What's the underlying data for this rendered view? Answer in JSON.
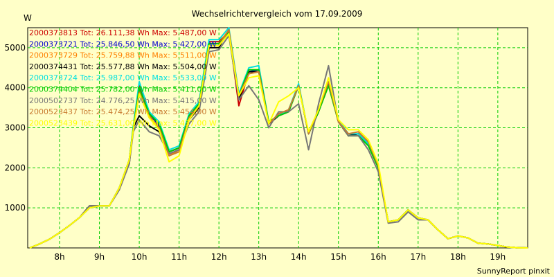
{
  "chart_data": {
    "type": "line",
    "title": "Wechselrichtervergleich vom 17.09.2009",
    "ylabel": "W",
    "footer": "SunnyReport pinxit",
    "xlim": [
      7.2,
      19.75
    ],
    "ylim": [
      0,
      5500
    ],
    "yticks": [
      1000,
      2000,
      3000,
      4000,
      5000
    ],
    "ytick_labels": [
      "1000",
      "2000",
      "3000",
      "4000",
      "5000"
    ],
    "xticks": [
      8,
      9,
      10,
      11,
      12,
      13,
      14,
      15,
      16,
      17,
      18,
      19
    ],
    "xtick_labels": [
      "8h",
      "9h",
      "10h",
      "11h",
      "12h",
      "13h",
      "14h",
      "15h",
      "16h",
      "17h",
      "18h",
      "19h"
    ],
    "grid": true,
    "legend_position": "top-left, inside plot",
    "x": [
      7.25,
      7.5,
      7.75,
      8.0,
      8.25,
      8.5,
      8.75,
      9.0,
      9.25,
      9.5,
      9.75,
      9.85,
      10.0,
      10.25,
      10.5,
      10.75,
      11.0,
      11.25,
      11.5,
      11.75,
      12.0,
      12.25,
      12.5,
      12.75,
      13.0,
      13.25,
      13.5,
      13.75,
      14.0,
      14.25,
      14.5,
      14.75,
      15.0,
      15.25,
      15.5,
      15.75,
      16.0,
      16.25,
      16.5,
      16.75,
      17.0,
      17.25,
      17.5,
      17.75,
      18.0,
      18.25,
      18.5,
      18.75,
      19.0,
      19.25,
      19.5,
      19.75
    ],
    "series": [
      {
        "name": "2000373813",
        "legend": "2000373813 Tot: 26.111,38 Wh Max: 5.487,00 W",
        "color": "#cc0000",
        "values": [
          0,
          100,
          220,
          380,
          560,
          760,
          1000,
          1050,
          1050,
          1500,
          2200,
          3000,
          4050,
          3400,
          3100,
          2400,
          2500,
          3300,
          3600,
          5150,
          5150,
          5400,
          3550,
          4400,
          4450,
          3100,
          3350,
          3450,
          4050,
          2850,
          3400,
          4100,
          3150,
          2800,
          2850,
          2600,
          2000,
          650,
          700,
          950,
          750,
          700,
          450,
          230,
          300,
          250,
          120,
          100,
          60,
          20,
          5,
          0
        ]
      },
      {
        "name": "2000373721",
        "legend": "2000373721 Tot: 25.846,50 Wh Max: 5.427,00 W",
        "color": "#0000cc",
        "values": [
          0,
          100,
          220,
          380,
          560,
          760,
          1000,
          1050,
          1050,
          1500,
          2200,
          3000,
          4000,
          3350,
          3050,
          2350,
          2450,
          3300,
          3600,
          5100,
          5100,
          5400,
          3800,
          4400,
          4450,
          3100,
          3300,
          3400,
          4050,
          2850,
          3400,
          4100,
          3200,
          2800,
          2850,
          2600,
          2000,
          650,
          700,
          950,
          750,
          700,
          450,
          230,
          300,
          250,
          120,
          100,
          60,
          20,
          5,
          0
        ]
      },
      {
        "name": "2000373729",
        "legend": "2000373729 Tot: 25.759,88 Wh Max: 5.511,00 W",
        "color": "#ff8000",
        "values": [
          0,
          100,
          220,
          380,
          560,
          760,
          1000,
          1050,
          1050,
          1500,
          2200,
          3000,
          4000,
          3300,
          3000,
          2300,
          2450,
          3250,
          3600,
          5100,
          5100,
          5450,
          3800,
          4350,
          4400,
          3100,
          3350,
          3450,
          4050,
          2850,
          3450,
          4150,
          3150,
          2800,
          2850,
          2600,
          2000,
          650,
          700,
          950,
          750,
          700,
          450,
          230,
          300,
          250,
          120,
          100,
          60,
          20,
          5,
          0
        ]
      },
      {
        "name": "2000374431",
        "legend": "2000374431 Tot: 25.577,88 Wh Max: 5.504,00 W",
        "color": "#000000",
        "values": [
          0,
          100,
          220,
          380,
          560,
          760,
          1050,
          1050,
          1050,
          1500,
          2100,
          3000,
          3300,
          3050,
          2900,
          2400,
          2500,
          3200,
          3500,
          5000,
          5000,
          5450,
          3700,
          4400,
          4400,
          3100,
          3300,
          3450,
          4050,
          2850,
          3400,
          4100,
          3150,
          2800,
          2850,
          2600,
          2000,
          650,
          700,
          950,
          750,
          700,
          450,
          230,
          300,
          250,
          120,
          100,
          60,
          20,
          5,
          0
        ]
      },
      {
        "name": "2000373724",
        "legend": "2000373724 Tot: 25.987,00 Wh Max: 5.533,00 W",
        "color": "#00e0e0",
        "values": [
          0,
          100,
          220,
          380,
          560,
          760,
          1000,
          1050,
          1050,
          1500,
          2200,
          3050,
          4150,
          3400,
          3150,
          2450,
          2550,
          3350,
          3650,
          5200,
          5200,
          5500,
          3850,
          4500,
          4550,
          3150,
          3300,
          3450,
          4100,
          2850,
          3450,
          4150,
          3200,
          2850,
          2850,
          2600,
          2000,
          650,
          700,
          950,
          750,
          700,
          450,
          230,
          300,
          250,
          120,
          100,
          60,
          20,
          5,
          0
        ]
      },
      {
        "name": "2000374404",
        "legend": "2000374404 Tot: 25.782,00 Wh Max: 5.411,00 W",
        "color": "#00cc00",
        "values": [
          0,
          100,
          220,
          380,
          560,
          760,
          1000,
          1050,
          1050,
          1500,
          2200,
          3000,
          4000,
          3350,
          3100,
          2400,
          2500,
          3300,
          3600,
          5100,
          5100,
          5400,
          3800,
          4450,
          4450,
          3150,
          3300,
          3400,
          4050,
          2850,
          3400,
          4050,
          3150,
          2800,
          2800,
          2550,
          2000,
          650,
          700,
          950,
          750,
          700,
          450,
          230,
          300,
          250,
          120,
          100,
          60,
          20,
          5,
          0
        ]
      },
      {
        "name": "2000502737",
        "legend": "2000502737 Tot: 24.776,25 Wh Max: 5.415,00 W",
        "color": "#777777",
        "values": [
          0,
          100,
          220,
          380,
          560,
          760,
          1050,
          1050,
          1050,
          1450,
          2100,
          2900,
          3200,
          2900,
          2800,
          2350,
          2450,
          3100,
          3400,
          4900,
          4950,
          5300,
          3700,
          4050,
          3700,
          3000,
          3400,
          3400,
          3600,
          2450,
          3600,
          4550,
          3150,
          2800,
          2800,
          2450,
          1900,
          620,
          650,
          900,
          700,
          700,
          450,
          230,
          300,
          250,
          120,
          100,
          60,
          20,
          5,
          0
        ]
      },
      {
        "name": "2000523437",
        "legend": "2000523437 Tot: 25.474,25 Wh Max: 5.454,00 W",
        "color": "#c87a30",
        "values": [
          0,
          100,
          220,
          380,
          560,
          760,
          1000,
          1050,
          1050,
          1500,
          2200,
          2950,
          3900,
          3250,
          3000,
          2300,
          2400,
          3250,
          3550,
          5050,
          5050,
          5450,
          3800,
          4350,
          4400,
          3100,
          3350,
          3450,
          4050,
          2850,
          3450,
          4150,
          3150,
          2850,
          2900,
          2650,
          2050,
          650,
          700,
          950,
          750,
          700,
          450,
          230,
          300,
          250,
          120,
          100,
          60,
          20,
          5,
          0
        ]
      },
      {
        "name": "2000523439",
        "legend": "2000523439 Tot: 25.631,00 Wh Max: 5.437,00 W",
        "color": "#ffff00",
        "values": [
          0,
          100,
          220,
          380,
          560,
          760,
          1000,
          1050,
          1050,
          1500,
          2200,
          2950,
          3850,
          3250,
          2950,
          2150,
          2300,
          3200,
          3550,
          5050,
          5050,
          5350,
          3800,
          4250,
          4300,
          3100,
          3650,
          3800,
          4000,
          2900,
          3450,
          4250,
          3200,
          2950,
          2950,
          2700,
          2100,
          650,
          700,
          950,
          750,
          700,
          450,
          230,
          300,
          250,
          120,
          100,
          60,
          20,
          5,
          0
        ]
      }
    ]
  }
}
